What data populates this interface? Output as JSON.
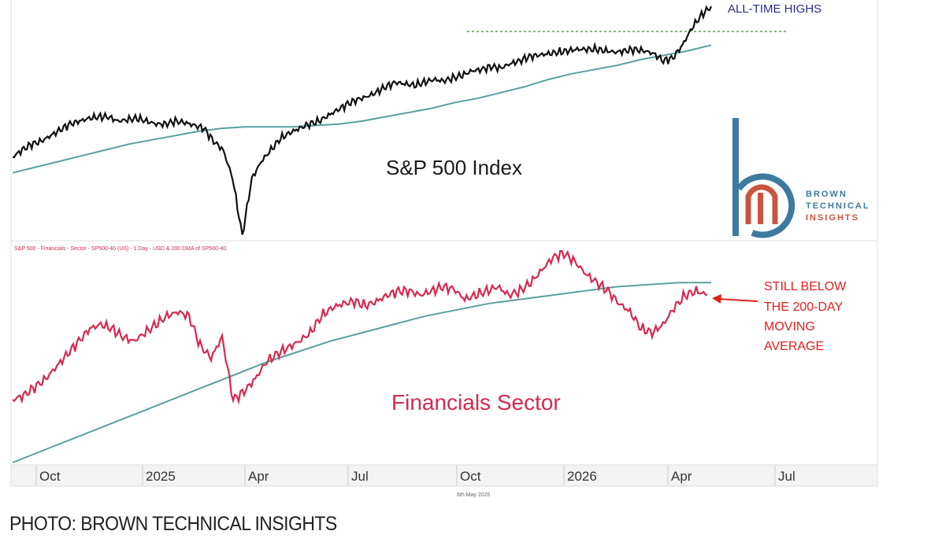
{
  "caption": "PHOTO: BROWN TECHNICAL INSIGHTS",
  "date_stamp": "6th May 2026",
  "logo": {
    "lines": [
      "BROWN",
      "TECHNICAL",
      "INSIGHTS"
    ],
    "colors": {
      "blue": "#3d7aa0",
      "red": "#c8553d"
    }
  },
  "colors": {
    "spx": "#111111",
    "financials": "#d42a4f",
    "ma": "#5a9fa0",
    "breakout": "#5aa34a",
    "note": "#e02020",
    "ath": "#2a2a8a"
  },
  "x_axis": {
    "ticks": [
      "Oct",
      "2025",
      "Apr",
      "Jul",
      "Oct",
      "2026",
      "Apr",
      "Jul"
    ]
  },
  "chart_data": [
    {
      "type": "line",
      "title": "S&P 500 Index",
      "annotations": [
        "ALL-TIME HIGHS"
      ],
      "series": [
        {
          "role": "price",
          "values": [
            0.25,
            0.3,
            0.34,
            0.36,
            0.4,
            0.44,
            0.48,
            0.5,
            0.52,
            0.53,
            0.53,
            0.5,
            0.51,
            0.52,
            0.5,
            0.48,
            0.48,
            0.5,
            0.49,
            0.47,
            0.45,
            0.36,
            0.3,
            0.1,
            -0.3,
            0.1,
            0.22,
            0.3,
            0.38,
            0.42,
            0.45,
            0.48,
            0.5,
            0.54,
            0.58,
            0.62,
            0.65,
            0.67,
            0.7,
            0.74,
            0.77,
            0.76,
            0.75,
            0.77,
            0.79,
            0.78,
            0.8,
            0.82,
            0.85,
            0.86,
            0.88,
            0.87,
            0.9,
            0.92,
            0.95,
            0.96,
            0.97,
            0.98,
            0.99,
            1.0,
            1.0,
            1.0,
            0.99,
            0.98,
            0.99,
            1.0,
            0.99,
            0.97,
            0.92,
            0.94,
            1.03,
            1.15,
            1.24,
            1.3
          ],
          "note": "relative level"
        },
        {
          "role": "200-day moving average",
          "values": [
            0.14,
            0.18,
            0.22,
            0.26,
            0.3,
            0.34,
            0.37,
            0.4,
            0.43,
            0.45,
            0.46,
            0.46,
            0.46,
            0.47,
            0.48,
            0.5,
            0.53,
            0.56,
            0.59,
            0.63,
            0.66,
            0.7,
            0.74,
            0.79,
            0.83,
            0.86,
            0.89,
            0.93,
            0.96,
            0.99,
            1.03
          ],
          "note": "relative level"
        }
      ]
    },
    {
      "type": "line",
      "title": "Financials Sector",
      "legend": "S&P 500 - Financials - Sector - SP500-40 (US) - 1 Day - USD & 200 DMA of SP500-40",
      "annotations": [
        "STILL BELOW",
        "THE 200-DAY",
        "MOVING",
        "AVERAGE"
      ],
      "series": [
        {
          "role": "price",
          "values": [
            0.3,
            0.32,
            0.36,
            0.4,
            0.46,
            0.52,
            0.58,
            0.64,
            0.66,
            0.64,
            0.6,
            0.58,
            0.62,
            0.66,
            0.7,
            0.72,
            0.7,
            0.56,
            0.5,
            0.6,
            0.3,
            0.34,
            0.4,
            0.48,
            0.52,
            0.55,
            0.58,
            0.62,
            0.7,
            0.74,
            0.76,
            0.77,
            0.75,
            0.77,
            0.8,
            0.82,
            0.82,
            0.8,
            0.82,
            0.84,
            0.83,
            0.78,
            0.8,
            0.82,
            0.84,
            0.8,
            0.82,
            0.86,
            0.92,
            0.98,
            1.0,
            0.96,
            0.9,
            0.86,
            0.82,
            0.76,
            0.72,
            0.64,
            0.62,
            0.66,
            0.74,
            0.8,
            0.82,
            0.8
          ],
          "note": "relative level"
        },
        {
          "role": "200-day moving average",
          "values": [
            0.0,
            0.06,
            0.12,
            0.18,
            0.24,
            0.3,
            0.36,
            0.42,
            0.48,
            0.53,
            0.58,
            0.62,
            0.66,
            0.7,
            0.73,
            0.76,
            0.78,
            0.8,
            0.82,
            0.84,
            0.85,
            0.86,
            0.86
          ],
          "note": "relative level"
        }
      ]
    }
  ]
}
